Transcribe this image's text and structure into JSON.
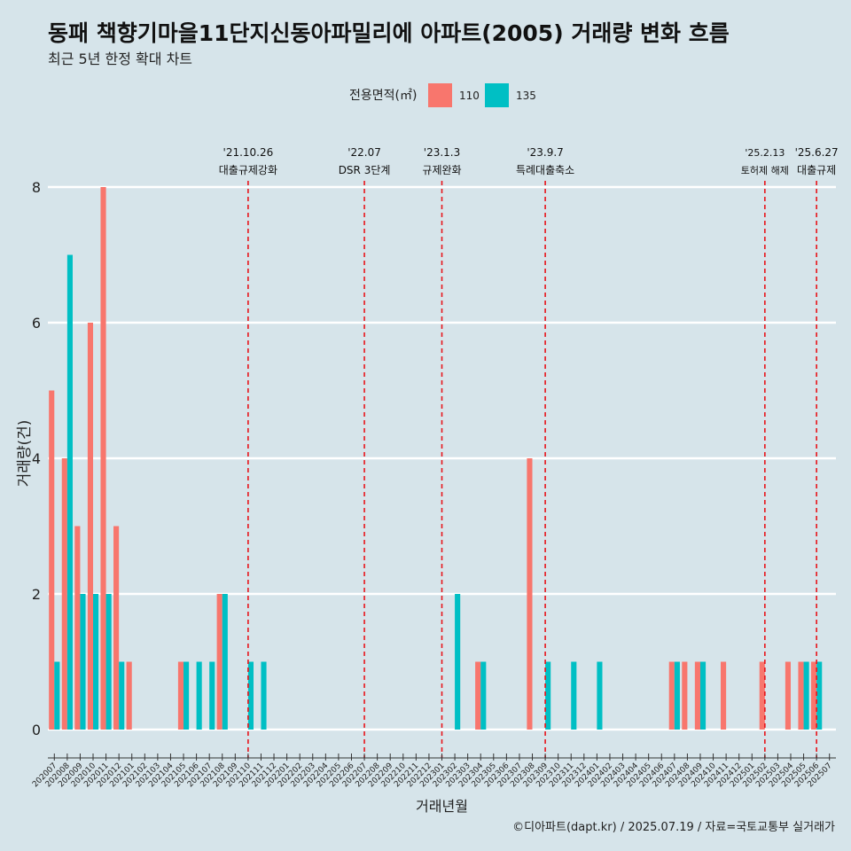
{
  "header": {
    "title": "동패 책향기마을11단지신동아파밀리에 아파트(2005) 거래량 변화 흐름",
    "subtitle": "최근 5년 한정 확대 차트"
  },
  "caption": "©디아파트(dapt.kr) / 2025.07.19 / 자료=국토교통부 실거래가",
  "chart_data": {
    "type": "bar",
    "title": "동패 책향기마을11단지신동아파밀리에 아파트(2005) 거래량 변화 흐름",
    "subtitle": "최근 5년 한정 확대 차트",
    "xlabel": "거래년월",
    "ylabel": "거래량(건)",
    "ylim": [
      0,
      8
    ],
    "yticks": [
      0,
      2,
      4,
      6,
      8
    ],
    "grid": true,
    "legend": {
      "title": "전용면적(㎡)",
      "placement": "top",
      "entries": [
        {
          "name": "110",
          "color": "#f8766d"
        },
        {
          "name": "135",
          "color": "#00bfc4"
        }
      ]
    },
    "categories": [
      "202007",
      "202008",
      "202009",
      "202010",
      "202011",
      "202012",
      "202101",
      "202102",
      "202103",
      "202104",
      "202105",
      "202106",
      "202107",
      "202108",
      "202109",
      "202110",
      "202111",
      "202112",
      "202201",
      "202202",
      "202203",
      "202204",
      "202205",
      "202206",
      "202207",
      "202208",
      "202209",
      "202210",
      "202211",
      "202212",
      "202301",
      "202302",
      "202303",
      "202304",
      "202305",
      "202306",
      "202307",
      "202308",
      "202309",
      "202310",
      "202311",
      "202312",
      "202401",
      "202402",
      "202403",
      "202404",
      "202405",
      "202406",
      "202407",
      "202408",
      "202409",
      "202410",
      "202411",
      "202412",
      "202501",
      "202502",
      "202503",
      "202504",
      "202505",
      "202506",
      "202507"
    ],
    "series": [
      {
        "name": "110",
        "color": "#f8766d",
        "values": [
          5,
          4,
          3,
          6,
          8,
          3,
          1,
          0,
          0,
          0,
          1,
          0,
          0,
          2,
          0,
          0,
          0,
          0,
          0,
          0,
          0,
          0,
          0,
          0,
          0,
          0,
          0,
          0,
          0,
          0,
          0,
          0,
          0,
          1,
          0,
          0,
          0,
          4,
          0,
          0,
          0,
          0,
          0,
          0,
          0,
          0,
          0,
          0,
          1,
          1,
          1,
          0,
          1,
          0,
          0,
          1,
          0,
          1,
          1,
          1,
          0
        ]
      },
      {
        "name": "135",
        "color": "#00bfc4",
        "values": [
          1,
          7,
          2,
          2,
          2,
          1,
          0,
          0,
          0,
          0,
          1,
          1,
          1,
          2,
          0,
          1,
          1,
          0,
          0,
          0,
          0,
          0,
          0,
          0,
          0,
          0,
          0,
          0,
          0,
          0,
          0,
          2,
          0,
          1,
          0,
          0,
          0,
          0,
          1,
          0,
          1,
          0,
          1,
          0,
          0,
          0,
          0,
          0,
          1,
          0,
          1,
          0,
          0,
          0,
          0,
          0,
          0,
          0,
          1,
          1,
          0
        ]
      }
    ],
    "annotations": [
      {
        "x": "202110",
        "date": "'21.10.26",
        "label": "대출규제강화"
      },
      {
        "x": "202207",
        "date": "'22.07",
        "label": "DSR 3단계"
      },
      {
        "x": "202301",
        "date": "'23.1.3",
        "label": "규제완화"
      },
      {
        "x": "202309",
        "date": "'23.9.7",
        "label": "특례대출축소"
      },
      {
        "x": "202502",
        "date": "'25.2.13",
        "label": "토허제 해제"
      },
      {
        "x": "202506",
        "date": "'25.6.27",
        "label": "대출규제"
      }
    ]
  },
  "colors": {
    "background": "#d6e4ea",
    "gridline": "#ffffff",
    "annotation_line": "#e8141a",
    "axis": "#333333"
  }
}
